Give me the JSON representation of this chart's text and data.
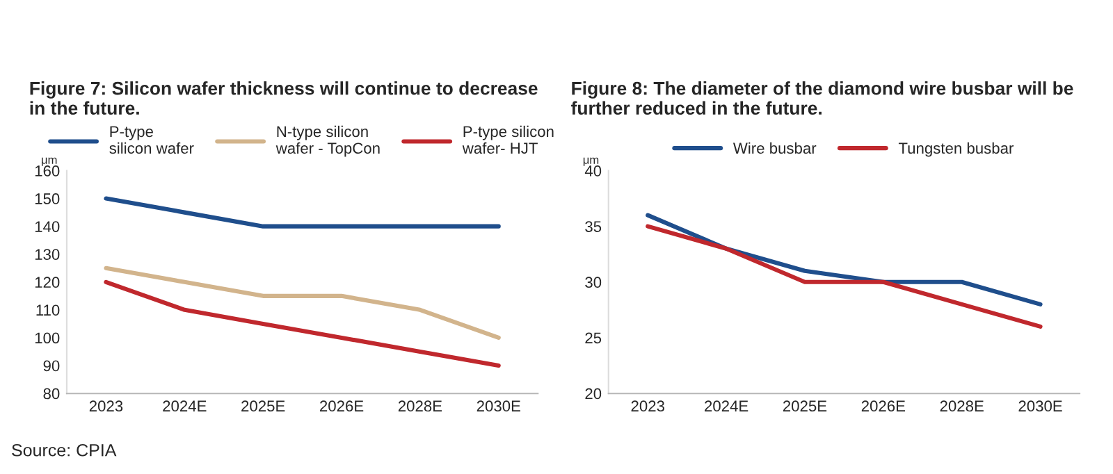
{
  "chart_data": [
    {
      "type": "line",
      "title": "Figure 7: Silicon wafer thickness will continue to decrease in the future.",
      "ylabel": "μm",
      "categories": [
        "2023",
        "2024E",
        "2025E",
        "2026E",
        "2028E",
        "2030E"
      ],
      "series": [
        {
          "name": "P-type\nsilicon wafer",
          "color": "#1f4e8c",
          "values": [
            150,
            145,
            140,
            140,
            140,
            140
          ]
        },
        {
          "name": "N-type silicon\nwafer - TopCon",
          "color": "#d2b48c",
          "values": [
            125,
            120,
            115,
            115,
            110,
            100
          ]
        },
        {
          "name": "P-type silicon\nwafer- HJT",
          "color": "#c0282d",
          "values": [
            120,
            110,
            105,
            100,
            95,
            90
          ]
        }
      ],
      "ylim": [
        80,
        160
      ],
      "yticks": [
        80,
        90,
        100,
        110,
        120,
        130,
        140,
        150,
        160
      ],
      "grid": false,
      "legend": "top",
      "annotations": [
        "Source: CPIA"
      ]
    },
    {
      "type": "line",
      "title": "Figure 8: The diameter of the diamond wire busbar will be further reduced in the future.",
      "ylabel": "μm",
      "categories": [
        "2023",
        "2024E",
        "2025E",
        "2026E",
        "2028E",
        "2030E"
      ],
      "series": [
        {
          "name": "Wire busbar",
          "color": "#1f4e8c",
          "values": [
            36,
            33,
            31,
            30,
            30,
            28
          ]
        },
        {
          "name": "Tungsten busbar",
          "color": "#c0282d",
          "values": [
            35,
            33,
            30,
            30,
            28,
            26
          ]
        }
      ],
      "ylim": [
        20,
        40
      ],
      "yticks": [
        20,
        25,
        30,
        35,
        40
      ],
      "grid": false,
      "legend": "top"
    }
  ]
}
